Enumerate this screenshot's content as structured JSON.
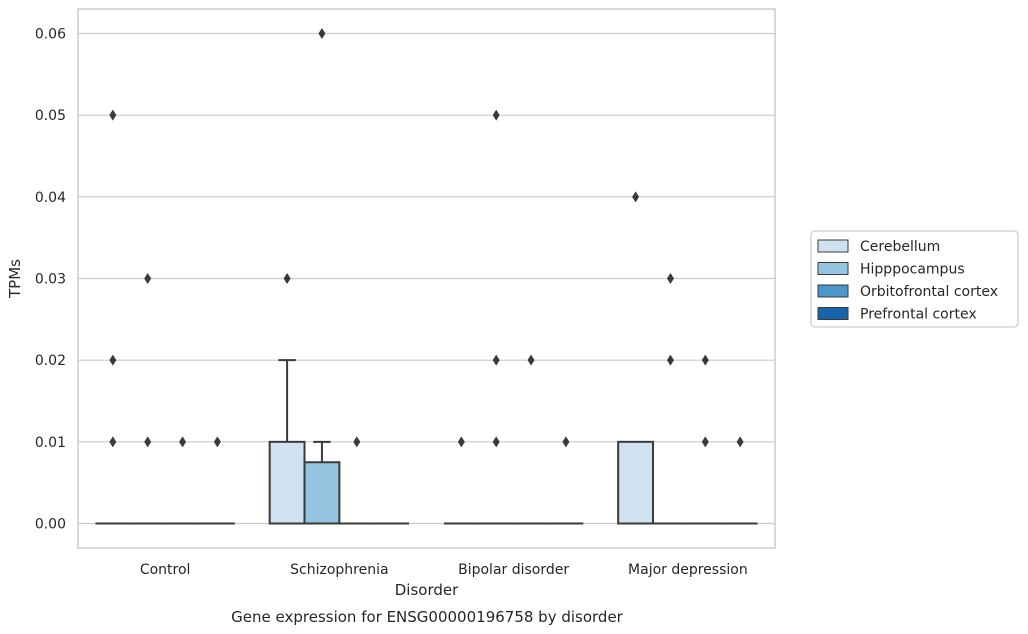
{
  "chart_data": {
    "type": "box",
    "title": "Gene expression for ENSG00000196758 by disorder",
    "xlabel": "Disorder",
    "ylabel": "TPMs",
    "ylim": [
      -0.003,
      0.063
    ],
    "yticks": [
      "0.00",
      "0.01",
      "0.02",
      "0.03",
      "0.04",
      "0.05",
      "0.06"
    ],
    "grid": "horizontal",
    "legend_position": "right",
    "categories": [
      "Control",
      "Schizophrenia",
      "Bipolar disorder",
      "Major depression"
    ],
    "series": [
      {
        "name": "Cerebellum",
        "color": "#d0e1f2"
      },
      {
        "name": "Hipppocampus",
        "color": "#94c4df"
      },
      {
        "name": "Orbitofrontal cortex",
        "color": "#4a98c9"
      },
      {
        "name": "Prefrontal cortex",
        "color": "#1764ab"
      }
    ],
    "boxes": [
      {
        "category": 0,
        "series": 0,
        "q1": 0,
        "median": 0,
        "q3": 0,
        "whisker_low": 0,
        "whisker_high": 0,
        "outliers": [
          0.01,
          0.02,
          0.05
        ]
      },
      {
        "category": 0,
        "series": 1,
        "q1": 0,
        "median": 0,
        "q3": 0,
        "whisker_low": 0,
        "whisker_high": 0,
        "outliers": [
          0.01,
          0.03
        ]
      },
      {
        "category": 0,
        "series": 2,
        "q1": 0,
        "median": 0,
        "q3": 0,
        "whisker_low": 0,
        "whisker_high": 0,
        "outliers": [
          0.01
        ]
      },
      {
        "category": 0,
        "series": 3,
        "q1": 0,
        "median": 0,
        "q3": 0,
        "whisker_low": 0,
        "whisker_high": 0,
        "outliers": [
          0.01
        ]
      },
      {
        "category": 1,
        "series": 0,
        "q1": 0,
        "median": 0,
        "q3": 0.01,
        "whisker_low": 0,
        "whisker_high": 0.02,
        "outliers": [
          0.03
        ]
      },
      {
        "category": 1,
        "series": 1,
        "q1": 0,
        "median": 0,
        "q3": 0.0075,
        "whisker_low": 0,
        "whisker_high": 0.01,
        "outliers": [
          0.06
        ]
      },
      {
        "category": 1,
        "series": 2,
        "q1": 0,
        "median": 0,
        "q3": 0,
        "whisker_low": 0,
        "whisker_high": 0,
        "outliers": [
          0.01
        ]
      },
      {
        "category": 1,
        "series": 3,
        "q1": 0,
        "median": 0,
        "q3": 0,
        "whisker_low": 0,
        "whisker_high": 0,
        "outliers": []
      },
      {
        "category": 2,
        "series": 0,
        "q1": 0,
        "median": 0,
        "q3": 0,
        "whisker_low": 0,
        "whisker_high": 0,
        "outliers": [
          0.01
        ]
      },
      {
        "category": 2,
        "series": 1,
        "q1": 0,
        "median": 0,
        "q3": 0,
        "whisker_low": 0,
        "whisker_high": 0,
        "outliers": [
          0.01,
          0.02,
          0.05
        ]
      },
      {
        "category": 2,
        "series": 2,
        "q1": 0,
        "median": 0,
        "q3": 0,
        "whisker_low": 0,
        "whisker_high": 0,
        "outliers": [
          0.02
        ]
      },
      {
        "category": 2,
        "series": 3,
        "q1": 0,
        "median": 0,
        "q3": 0,
        "whisker_low": 0,
        "whisker_high": 0,
        "outliers": [
          0.01
        ]
      },
      {
        "category": 3,
        "series": 0,
        "q1": 0,
        "median": 0,
        "q3": 0.01,
        "whisker_low": 0,
        "whisker_high": 0.01,
        "outliers": [
          0.04
        ]
      },
      {
        "category": 3,
        "series": 1,
        "q1": 0,
        "median": 0,
        "q3": 0,
        "whisker_low": 0,
        "whisker_high": 0,
        "outliers": [
          0.02,
          0.03
        ]
      },
      {
        "category": 3,
        "series": 2,
        "q1": 0,
        "median": 0,
        "q3": 0,
        "whisker_low": 0,
        "whisker_high": 0,
        "outliers": [
          0.01,
          0.02
        ]
      },
      {
        "category": 3,
        "series": 3,
        "q1": 0,
        "median": 0,
        "q3": 0,
        "whisker_low": 0,
        "whisker_high": 0,
        "outliers": [
          0.01
        ]
      }
    ]
  }
}
